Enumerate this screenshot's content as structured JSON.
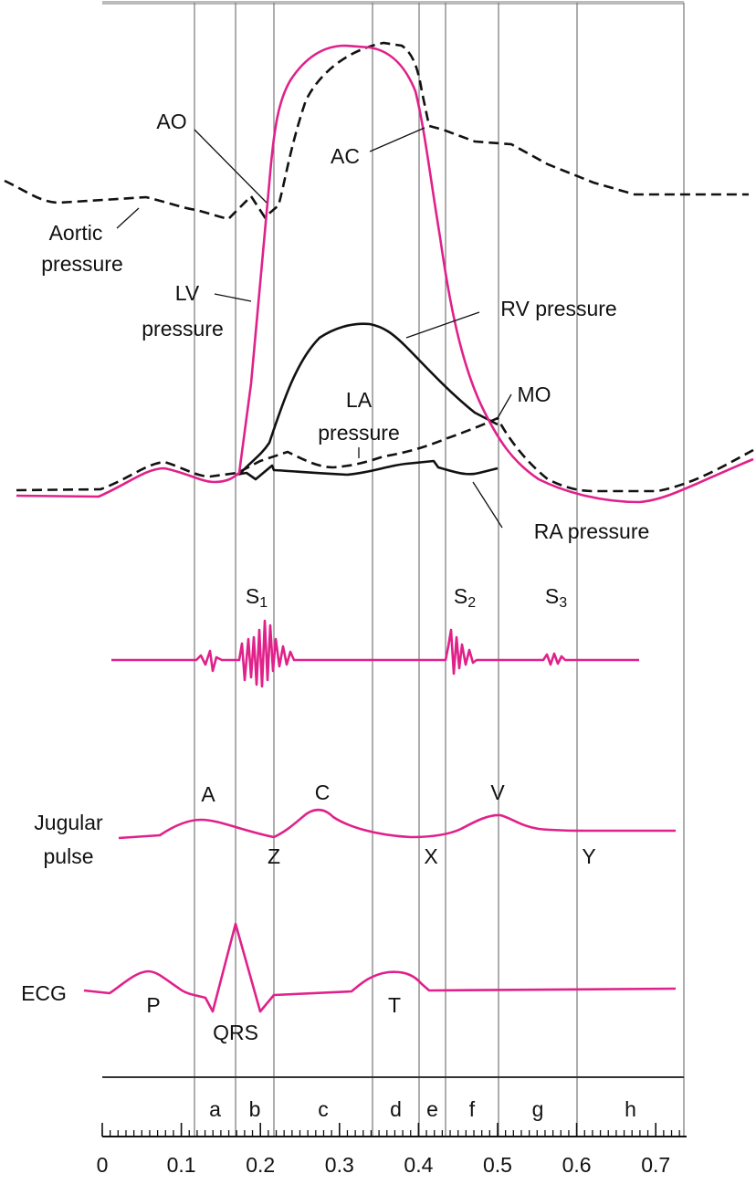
{
  "labels": {
    "ao": "AO",
    "ac": "AC",
    "aortic_pressure": [
      "Aortic",
      "pressure"
    ],
    "lv_pressure": [
      "LV",
      "pressure"
    ],
    "rv_pressure": "RV pressure",
    "la_pressure": [
      "LA",
      "pressure"
    ],
    "mo": "MO",
    "ra_pressure": "RA pressure"
  },
  "heart_sounds": [
    {
      "letter": "S",
      "subscript": "1"
    },
    {
      "letter": "S",
      "subscript": "2"
    },
    {
      "letter": "S",
      "subscript": "3"
    }
  ],
  "jugular": {
    "title": [
      "Jugular",
      "pulse"
    ],
    "waves": [
      "A",
      "C",
      "V",
      "Z",
      "X",
      "Y"
    ]
  },
  "ecg": {
    "title": "ECG",
    "waves": [
      "P",
      "QRS",
      "T"
    ]
  },
  "phases": [
    "a",
    "b",
    "c",
    "d",
    "e",
    "f",
    "g",
    "h"
  ],
  "time_axis": {
    "ticks": [
      0,
      0.1,
      0.2,
      0.3,
      0.4,
      0.5,
      0.6,
      0.7
    ]
  }
}
